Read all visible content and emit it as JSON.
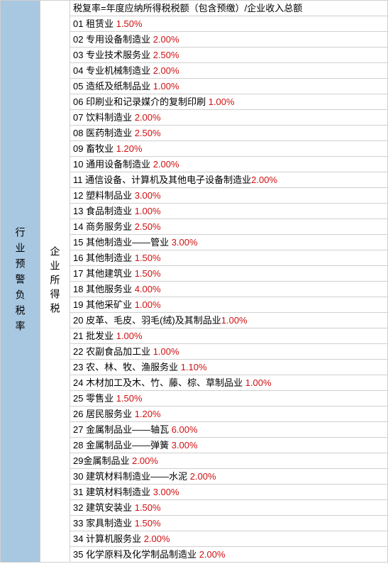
{
  "leftHeader": "行业预警负税率",
  "midHeader": "企业所得税",
  "formulaRow": "税复率=年度应纳所得税税额（包含预缴）/企业收入总额",
  "colors": {
    "leftBg": "#a8c7e0",
    "rateColor": "#d01010",
    "borderColor": "#d0d0d0",
    "textColor": "#000000",
    "bgColor": "#ffffff"
  },
  "rows": [
    {
      "num": "01",
      "label": " 租赁业 ",
      "rate": "1.50%"
    },
    {
      "num": "02",
      "label": " 专用设备制造业 ",
      "rate": "2.00%"
    },
    {
      "num": "03",
      "label": " 专业技术服务业 ",
      "rate": "2.50%"
    },
    {
      "num": "04",
      "label": " 专业机械制造业 ",
      "rate": "2.00%"
    },
    {
      "num": "05",
      "label": " 造纸及纸制品业 ",
      "rate": "1.00%"
    },
    {
      "num": "06",
      "label": " 印刷业和记录媒介的复制印刷 ",
      "rate": "1.00%"
    },
    {
      "num": "07",
      "label": " 饮料制造业 ",
      "rate": "2.00%"
    },
    {
      "num": "08",
      "label": " 医药制造业 ",
      "rate": "2.50%"
    },
    {
      "num": "09",
      "label": " 畜牧业 ",
      "rate": "1.20%"
    },
    {
      "num": "10",
      "label": " 通用设备制造业 ",
      "rate": "2.00%"
    },
    {
      "num": "11",
      "label": " 通信设备、计算机及其他电子设备制造业",
      "rate": "2.00%"
    },
    {
      "num": "12",
      "label": " 塑料制品业 ",
      "rate": "3.00%"
    },
    {
      "num": "13",
      "label": " 食品制造业 ",
      "rate": "1.00%"
    },
    {
      "num": "14",
      "label": " 商务服务业 ",
      "rate": "2.50%"
    },
    {
      "num": "15",
      "label": " 其他制造业——管业 ",
      "rate": "3.00%"
    },
    {
      "num": "16",
      "label": " 其他制造业 ",
      "rate": "1.50%"
    },
    {
      "num": "17",
      "label": " 其他建筑业 ",
      "rate": "1.50%"
    },
    {
      "num": "18",
      "label": " 其他服务业 ",
      "rate": "4.00%"
    },
    {
      "num": "19",
      "label": " 其他采矿业 ",
      "rate": "1.00%"
    },
    {
      "num": "20",
      "label": " 皮革、毛皮、羽毛(绒)及其制品业",
      "rate": "1.00%"
    },
    {
      "num": "21",
      "label": " 批发业 ",
      "rate": "1.00%"
    },
    {
      "num": "22",
      "label": " 农副食品加工业 ",
      "rate": "1.00%"
    },
    {
      "num": "23",
      "label": " 农、林、牧、渔服务业 ",
      "rate": "1.10%"
    },
    {
      "num": "24",
      "label": " 木材加工及木、竹、藤、棕、草制品业 ",
      "rate": "1.00%"
    },
    {
      "num": "25",
      "label": " 零售业 ",
      "rate": "1.50%"
    },
    {
      "num": "26",
      "label": " 居民服务业 ",
      "rate": "1.20%"
    },
    {
      "num": "27",
      "label": " 金属制品业——轴瓦 ",
      "rate": "6.00%"
    },
    {
      "num": "28",
      "label": " 金属制品业——弹簧 ",
      "rate": "3.00%"
    },
    {
      "num": "29",
      "label": "金属制品业 ",
      "rate": "2.00%"
    },
    {
      "num": "30",
      "label": " 建筑材料制造业——水泥 ",
      "rate": "2.00%"
    },
    {
      "num": "31",
      "label": " 建筑材料制造业 ",
      "rate": "3.00%"
    },
    {
      "num": "32",
      "label": " 建筑安装业 ",
      "rate": "1.50%"
    },
    {
      "num": "33",
      "label": " 家具制造业 ",
      "rate": "1.50%"
    },
    {
      "num": "34",
      "label": " 计算机服务业 ",
      "rate": "2.00%"
    },
    {
      "num": "35",
      "label": " 化学原料及化学制品制造业 ",
      "rate": "2.00%"
    }
  ]
}
